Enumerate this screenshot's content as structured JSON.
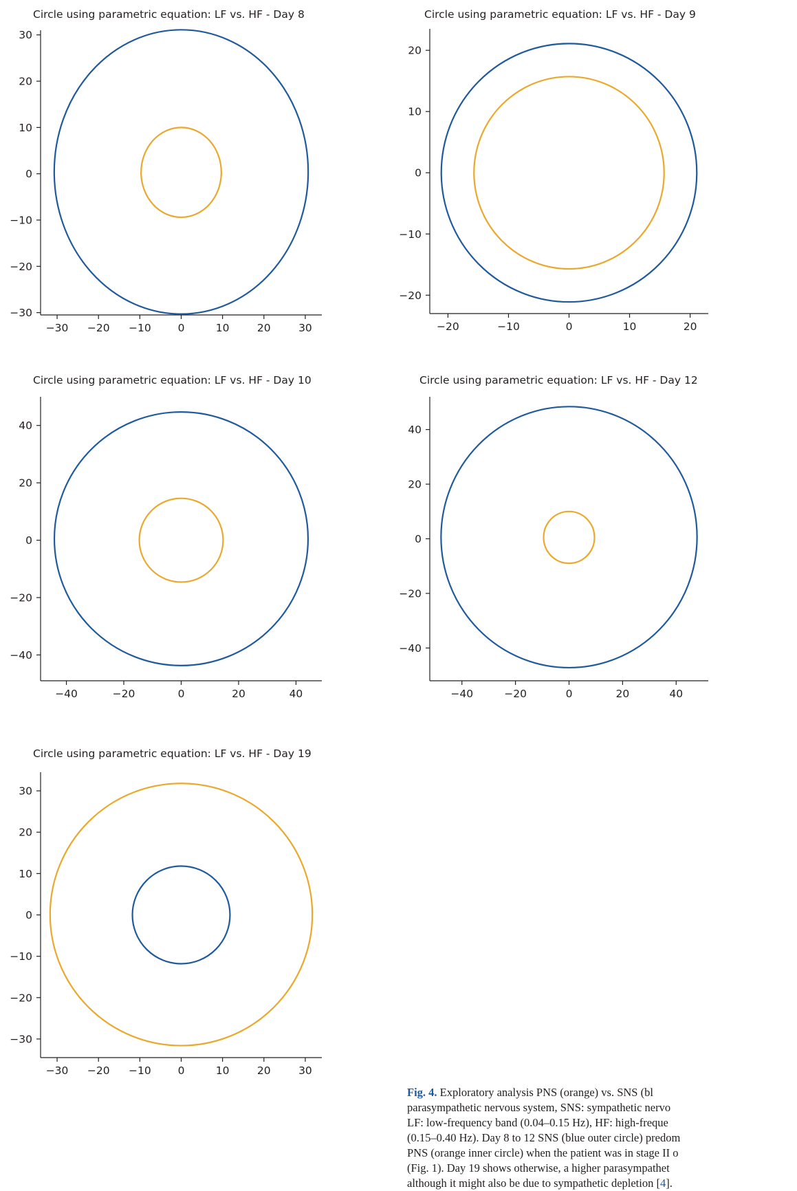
{
  "colors": {
    "blue": "#1f5a9c",
    "orange": "#eaa92c",
    "axis": "#231f20"
  },
  "chart_data": [
    {
      "type": "line",
      "title": "Circle using parametric equation: LF vs. HF - Day 8",
      "xlim": [
        -34,
        34
      ],
      "ylim": [
        -30.5,
        31
      ],
      "xticks": [
        -30,
        -20,
        -10,
        0,
        10,
        20,
        30
      ],
      "yticks": [
        -30,
        -20,
        -10,
        0,
        10,
        20,
        30
      ],
      "series": [
        {
          "color": "blue",
          "center": [
            0,
            0.4
          ],
          "radius": 30.7
        },
        {
          "color": "orange",
          "center": [
            0,
            0.3
          ],
          "radius": 9.7
        }
      ],
      "grid": false
    },
    {
      "type": "line",
      "title": "Circle using parametric equation: LF vs. HF - Day 9",
      "xlim": [
        -23,
        23
      ],
      "ylim": [
        -23,
        23.5
      ],
      "xticks": [
        -20,
        -10,
        0,
        10,
        20
      ],
      "yticks": [
        -20,
        -10,
        0,
        10,
        20
      ],
      "series": [
        {
          "color": "blue",
          "center": [
            0,
            0
          ],
          "radius": 21.1
        },
        {
          "color": "orange",
          "center": [
            0,
            0
          ],
          "radius": 15.7
        }
      ],
      "grid": false
    },
    {
      "type": "line",
      "title": "Circle using parametric equation: LF vs. HF - Day 10",
      "xlim": [
        -49,
        49
      ],
      "ylim": [
        -49,
        50
      ],
      "xticks": [
        -40,
        -20,
        0,
        20,
        40
      ],
      "yticks": [
        -40,
        -20,
        0,
        20,
        40
      ],
      "series": [
        {
          "color": "blue",
          "center": [
            0,
            0.5
          ],
          "radius": 44.2
        },
        {
          "color": "orange",
          "center": [
            0,
            0
          ],
          "radius": 14.6
        }
      ],
      "grid": false
    },
    {
      "type": "line",
      "title": "Circle using parametric equation: LF vs. HF - Day 12",
      "xlim": [
        -52,
        52
      ],
      "ylim": [
        -52,
        52
      ],
      "xticks": [
        -40,
        -20,
        0,
        20,
        40
      ],
      "yticks": [
        -40,
        -20,
        0,
        20,
        40
      ],
      "series": [
        {
          "color": "blue",
          "center": [
            0,
            0.6
          ],
          "radius": 47.8
        },
        {
          "color": "orange",
          "center": [
            0,
            0.5
          ],
          "radius": 9.5
        }
      ],
      "grid": false
    },
    {
      "type": "line",
      "title": "Circle using parametric equation: LF vs. HF - Day 19",
      "xlim": [
        -34,
        34
      ],
      "ylim": [
        -34.5,
        34.5
      ],
      "xticks": [
        -30,
        -20,
        -10,
        0,
        10,
        20,
        30
      ],
      "yticks": [
        -30,
        -20,
        -10,
        0,
        10,
        20,
        30
      ],
      "series": [
        {
          "color": "orange",
          "center": [
            0,
            0.1
          ],
          "radius": 31.7
        },
        {
          "color": "blue",
          "center": [
            0,
            0
          ],
          "radius": 11.8
        }
      ],
      "grid": false
    }
  ],
  "caption": {
    "label": "Fig. 4.",
    "line1": " Exploratory analysis PNS (orange) vs. SNS (bl",
    "line2": "parasympathetic nervous system, SNS: sympathetic nervo",
    "line3": "LF: low-frequency band (0.04–0.15 Hz), HF: high-freque",
    "line4": "(0.15–0.40 Hz). Day 8 to 12 SNS (blue outer circle) predom",
    "line5": "PNS (orange inner circle) when the patient was in stage II o",
    "line6": "(Fig. 1). Day 19 shows otherwise, a higher parasympathet",
    "line7a": "although it might also be due to sympathetic depletion [",
    "ref": "4",
    "line7b": "]."
  }
}
